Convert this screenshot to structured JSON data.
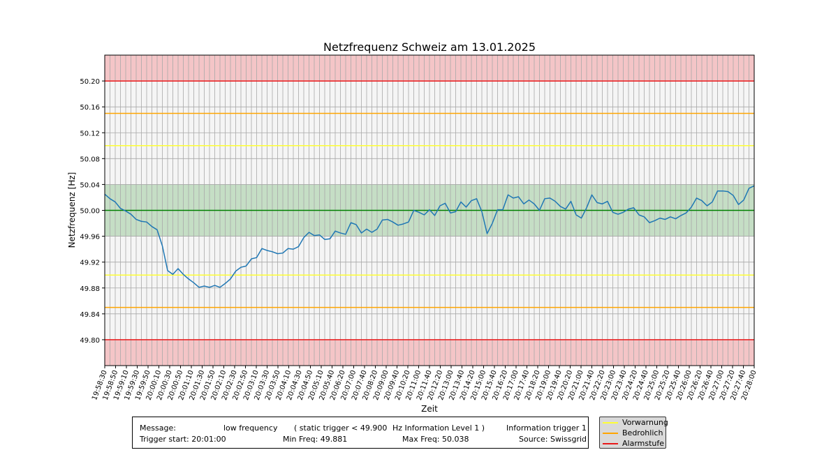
{
  "chart_data": {
    "type": "line",
    "title": "Netzfrequenz Schweiz am 13.01.2025",
    "xlabel": "Zeit",
    "ylabel": "Netzfrequenz [Hz]",
    "ylim": [
      49.76,
      50.24
    ],
    "yticks": [
      "49.80",
      "49.84",
      "49.88",
      "49.92",
      "49.96",
      "50.00",
      "50.04",
      "50.08",
      "50.12",
      "50.16",
      "50.20"
    ],
    "xticks": [
      "19:58:30",
      "19:58:50",
      "19:59:10",
      "19:59:30",
      "19:59:50",
      "20:00:10",
      "20:00:30",
      "20:00:50",
      "20:01:10",
      "20:01:30",
      "20:01:50",
      "20:02:10",
      "20:02:30",
      "20:02:50",
      "20:03:10",
      "20:03:30",
      "20:03:50",
      "20:04:10",
      "20:04:30",
      "20:04:50",
      "20:05:10",
      "20:05:40",
      "20:06:20",
      "20:07:00",
      "20:07:40",
      "20:08:20",
      "20:09:00",
      "20:09:40",
      "20:10:20",
      "20:11:00",
      "20:11:40",
      "20:12:20",
      "20:13:00",
      "20:13:40",
      "20:14:20",
      "20:15:00",
      "20:15:40",
      "20:16:20",
      "20:17:00",
      "20:17:40",
      "20:18:20",
      "20:19:00",
      "20:19:40",
      "20:20:20",
      "20:21:00",
      "20:21:40",
      "20:22:20",
      "20:23:00",
      "20:23:40",
      "20:24:20",
      "20:24:40",
      "20:25:00",
      "20:25:20",
      "20:25:40",
      "20:26:00",
      "20:26:20",
      "20:26:40",
      "20:27:00",
      "20:27:20",
      "20:27:40",
      "20:28:00"
    ],
    "grid": true,
    "bands": [
      {
        "from": 50.2,
        "to": 50.24,
        "color": "#f4c5c7"
      },
      {
        "from": 49.76,
        "to": 49.8,
        "color": "#f4c5c7"
      },
      {
        "from": 49.96,
        "to": 50.04,
        "color": "#c5dec5"
      }
    ],
    "hlines": [
      {
        "y": 50.2,
        "color": "#e8191a"
      },
      {
        "y": 49.8,
        "color": "#e8191a"
      },
      {
        "y": 50.15,
        "color": "#ffa500"
      },
      {
        "y": 49.85,
        "color": "#ffa500"
      },
      {
        "y": 50.1,
        "color": "#ffff33"
      },
      {
        "y": 49.9,
        "color": "#ffff33"
      },
      {
        "y": 50.0,
        "color": "#008000"
      }
    ],
    "series": [
      {
        "color": "#1f77b4",
        "values": [
          50.025,
          50.018,
          50.013,
          50.003,
          49.999,
          49.994,
          49.986,
          49.983,
          49.982,
          49.975,
          49.97,
          49.945,
          49.907,
          49.901,
          49.91,
          49.901,
          49.894,
          49.888,
          49.881,
          49.883,
          49.881,
          49.884,
          49.881,
          49.887,
          49.894,
          49.906,
          49.912,
          49.914,
          49.925,
          49.927,
          49.941,
          49.938,
          49.936,
          49.933,
          49.934,
          49.941,
          49.94,
          49.944,
          49.958,
          49.966,
          49.961,
          49.962,
          49.955,
          49.956,
          49.968,
          49.965,
          49.963,
          49.981,
          49.978,
          49.965,
          49.971,
          49.966,
          49.971,
          49.985,
          49.986,
          49.982,
          49.977,
          49.979,
          49.982,
          50.0,
          49.997,
          49.993,
          50.001,
          49.992,
          50.007,
          50.011,
          49.996,
          49.998,
          50.013,
          50.005,
          50.015,
          50.018,
          49.998,
          49.964,
          49.98,
          50.001,
          50.001,
          50.024,
          50.019,
          50.021,
          50.01,
          50.016,
          50.01,
          50.0,
          50.018,
          50.019,
          50.014,
          50.006,
          50.002,
          50.014,
          49.993,
          49.988,
          50.004,
          50.024,
          50.012,
          50.01,
          50.014,
          49.997,
          49.994,
          49.997,
          50.002,
          50.004,
          49.993,
          49.99,
          49.981,
          49.984,
          49.988,
          49.986,
          49.99,
          49.987,
          49.992,
          49.996,
          50.005,
          50.019,
          50.015,
          50.007,
          50.013,
          50.03,
          50.03,
          50.029,
          50.023,
          50.009,
          50.016,
          50.034,
          50.038
        ]
      }
    ],
    "legend": {
      "placement": "bottom-right",
      "entries": [
        {
          "label": "Vorwarnung",
          "color": "#ffff33"
        },
        {
          "label": "Bedrohlich",
          "color": "#ffa500"
        },
        {
          "label": "Alarmstufe",
          "color": "#e8191a"
        }
      ]
    }
  },
  "info": {
    "message_label": "Message:",
    "message_value": "low frequency",
    "trigger_text": "( static trigger < 49.900",
    "level_text": "Hz Information Level 1 )",
    "info_trigger": "Information trigger 1",
    "trigger_start": "Trigger start: 20:01:00",
    "min_freq": "Min Freq: 49.881",
    "max_freq": "Max Freq: 50.038",
    "source": "Source: Swissgrid"
  }
}
